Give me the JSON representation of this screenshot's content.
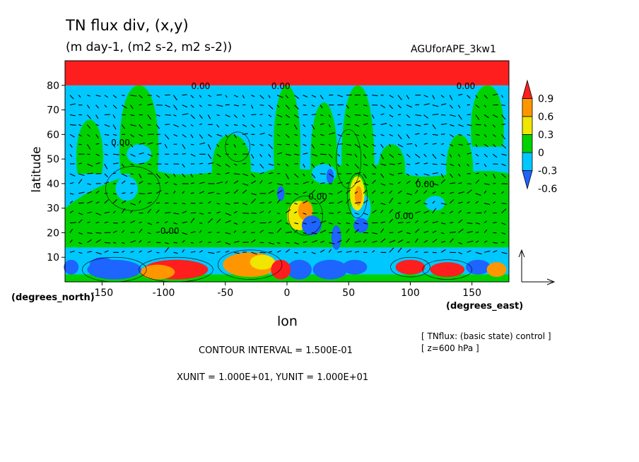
{
  "chart_data": {
    "type": "heatmap",
    "title": "TN flux div, (x,y)",
    "subtitle": "(m day-1, (m2 s-2, m2 s-2))",
    "run_label": "AGUforAPE_3kw1",
    "xlabel": "lon",
    "ylabel": "latitude",
    "xunit_label": "(degrees_east)",
    "yunit_label": "(degrees_north)",
    "xlim": [
      -180,
      180
    ],
    "ylim": [
      0,
      90
    ],
    "x_ticks": [
      {
        "v": -150,
        "label": "-150"
      },
      {
        "v": -100,
        "label": "-100"
      },
      {
        "v": -50,
        "label": "-50"
      },
      {
        "v": 0,
        "label": "0"
      },
      {
        "v": 50,
        "label": "50"
      },
      {
        "v": 100,
        "label": "100"
      },
      {
        "v": 150,
        "label": "150"
      }
    ],
    "y_ticks": [
      {
        "v": 10,
        "label": "10"
      },
      {
        "v": 20,
        "label": "20"
      },
      {
        "v": 30,
        "label": "30"
      },
      {
        "v": 40,
        "label": "40"
      },
      {
        "v": 50,
        "label": "50"
      },
      {
        "v": 60,
        "label": "60"
      },
      {
        "v": 70,
        "label": "70"
      },
      {
        "v": 80,
        "label": "80"
      }
    ],
    "colorbar": {
      "levels": [
        {
          "v": 0.9,
          "label": "0.9"
        },
        {
          "v": 0.6,
          "label": "0.6"
        },
        {
          "v": 0.3,
          "label": "0.3"
        },
        {
          "v": 0,
          "label": "0"
        },
        {
          "v": -0.3,
          "label": "-0.3"
        },
        {
          "v": -0.6,
          "label": "-0.6"
        }
      ],
      "colors": [
        "#1e64ff",
        "#00c8ff",
        "#00d200",
        "#f0e600",
        "#ff9600",
        "#ff1e1e"
      ]
    },
    "contour_labels": [
      {
        "lon": -70,
        "lat": 80,
        "label": "0.00"
      },
      {
        "lon": -5,
        "lat": 80,
        "label": "0.00"
      },
      {
        "lon": 145,
        "lat": 80,
        "label": "0.00"
      },
      {
        "lon": -135,
        "lat": 57,
        "label": "0.00"
      },
      {
        "lon": -95,
        "lat": 21,
        "label": "0.00"
      },
      {
        "lon": 25,
        "lat": 35,
        "label": "0.00"
      },
      {
        "lon": 95,
        "lat": 27,
        "label": "0.00"
      },
      {
        "lon": 112,
        "lat": 40,
        "label": "0.00"
      }
    ],
    "contour_interval_text": "CONTOUR INTERVAL = 1.500E-01",
    "unit_text": "XUNIT = 1.000E+01, YUNIT = 1.000E+01",
    "note_lines": [
      "[ TNflux: (basic state) control ]",
      "[ z=600 hPa ]"
    ]
  }
}
